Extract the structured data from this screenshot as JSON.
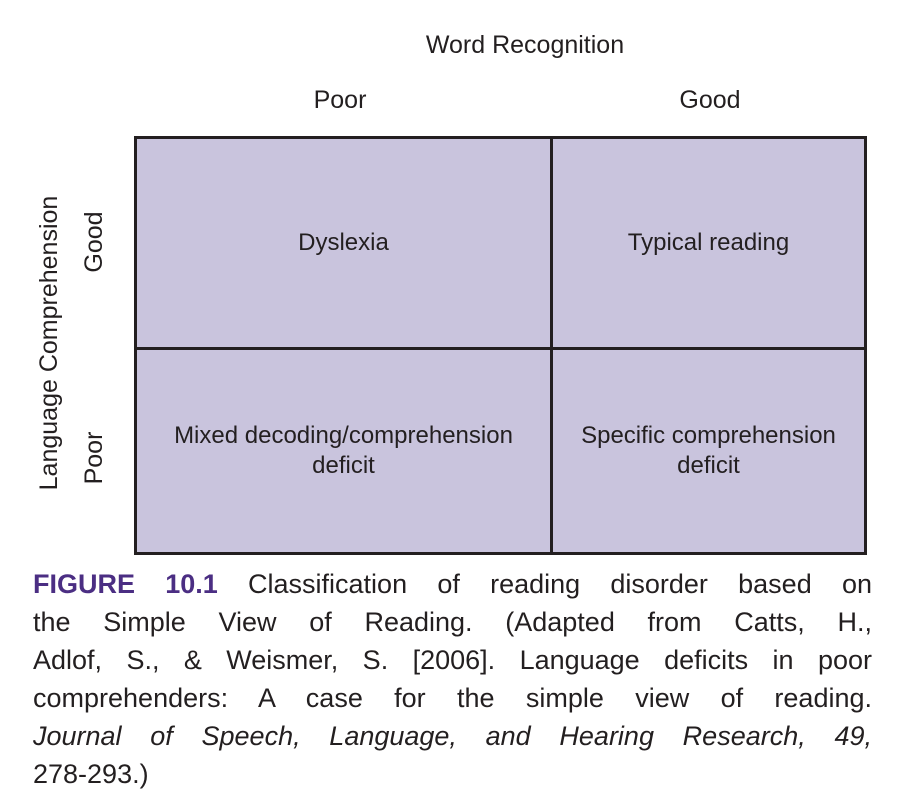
{
  "diagram": {
    "top_axis_title": "Word Recognition",
    "columns": [
      "Poor",
      "Good"
    ],
    "left_axis_title": "Language Comprehension",
    "rows": [
      "Good",
      "Poor"
    ],
    "cells": [
      [
        "Dyslexia",
        "Typical reading"
      ],
      [
        "Mixed decoding/comprehension deficit",
        "Specific comprehension deficit"
      ]
    ],
    "cell_fill": "#c9c4dd",
    "border_color": "#231f20"
  },
  "caption": {
    "label": "FIGURE 10.1",
    "label_color": "#4b2e83",
    "line1_rest": "Classification of reading disorder based on",
    "line2": "the Simple View of Reading. (Adapted from Catts, H.,",
    "line3": "Adlof, S., & Weismer, S. [2006]. Language deficits in poor",
    "line4": "comprehenders: A case for the simple view of reading.",
    "line5_italic": "Journal of Speech, Language, and Hearing Research, 49,",
    "line6": "278-293.)"
  }
}
